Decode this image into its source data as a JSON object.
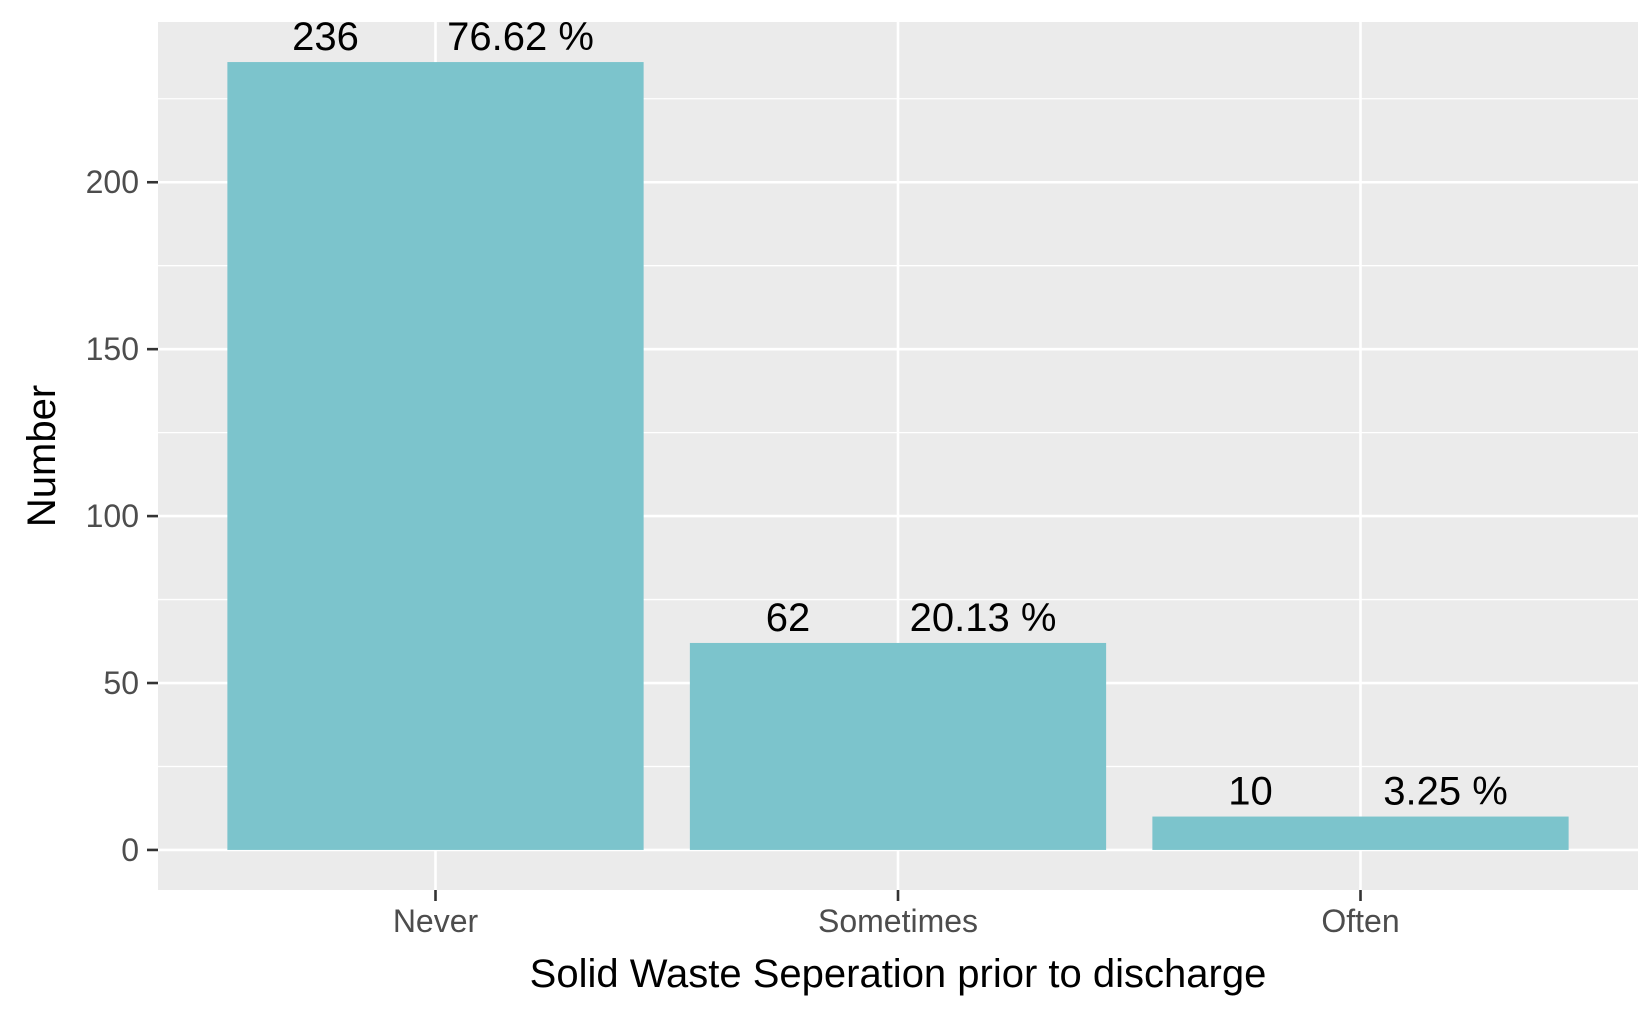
{
  "chart_data": {
    "type": "bar",
    "categories": [
      "Never",
      "Sometimes",
      "Often"
    ],
    "values": [
      236,
      62,
      10
    ],
    "percent_labels": [
      "76.62 %",
      "20.13 %",
      "3.25 %"
    ],
    "title": "",
    "xlabel": "Solid Waste Seperation prior to discharge",
    "ylabel": "Number",
    "ylim": [
      -12,
      248
    ],
    "yticks": [
      0,
      50,
      100,
      150,
      200
    ],
    "grid": true,
    "legend": "none"
  },
  "colors": {
    "bar": "#7cc4cc",
    "panel": "#ebebeb",
    "grid": "#ffffff",
    "tick": "#333333"
  }
}
